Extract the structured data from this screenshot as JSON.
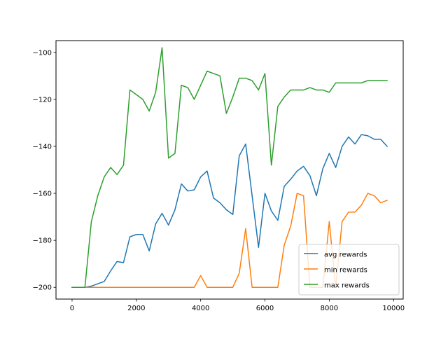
{
  "chart_data": {
    "type": "line",
    "title": "",
    "xlabel": "",
    "ylabel": "",
    "xlim": [
      -500,
      10300
    ],
    "ylim": [
      -205,
      -95
    ],
    "x_ticks": [
      0,
      2000,
      4000,
      6000,
      8000,
      10000
    ],
    "x_tick_labels": [
      "0",
      "2000",
      "4000",
      "6000",
      "8000",
      "10000"
    ],
    "y_ticks": [
      -200,
      -180,
      -160,
      -140,
      -120,
      -100
    ],
    "y_tick_labels": [
      "−200",
      "−180",
      "−160",
      "−140",
      "−120",
      "−100"
    ],
    "grid": false,
    "legend_position": "lower right",
    "x": [
      0,
      200,
      400,
      600,
      800,
      1000,
      1200,
      1400,
      1600,
      1800,
      2000,
      2200,
      2400,
      2600,
      2800,
      3000,
      3200,
      3400,
      3600,
      3800,
      4000,
      4200,
      4400,
      4600,
      4800,
      5000,
      5200,
      5400,
      5600,
      5800,
      6000,
      6200,
      6400,
      6600,
      6800,
      7000,
      7200,
      7400,
      7600,
      7800,
      8000,
      8200,
      8400,
      8600,
      8800,
      9000,
      9200,
      9400,
      9600,
      9800
    ],
    "series": [
      {
        "name": "avg rewards",
        "color": "#1f77b4",
        "values": [
          -200,
          -200,
          -200,
          -199.5,
          -198.5,
          -197.5,
          -193,
          -189,
          -189.5,
          -178.5,
          -177.5,
          -177.5,
          -184.5,
          -173,
          -168.5,
          -173.5,
          -167,
          -156,
          -159,
          -158.5,
          -153,
          -150.5,
          -162,
          -164,
          -167,
          -169,
          -144,
          -139,
          -161,
          -183,
          -160,
          -167.5,
          -171.5,
          -157,
          -154,
          -150.5,
          -148.5,
          -152.5,
          -161,
          -149.5,
          -143,
          -149,
          -140,
          -136,
          -139,
          -135,
          -135.5,
          -137,
          -137,
          -140
        ]
      },
      {
        "name": "min rewards",
        "color": "#ff7f0e",
        "values": [
          -200,
          -200,
          -200,
          -200,
          -200,
          -200,
          -200,
          -200,
          -200,
          -200,
          -200,
          -200,
          -200,
          -200,
          -200,
          -200,
          -200,
          -200,
          -200,
          -200,
          -195,
          -200,
          -200,
          -200,
          -200,
          -200,
          -194,
          -175,
          -200,
          -200,
          -200,
          -200,
          -200,
          -182,
          -174,
          -160,
          -161,
          -200,
          -200,
          -200,
          -172,
          -200,
          -172,
          -168,
          -168,
          -165,
          -160,
          -161,
          -164,
          -163
        ]
      },
      {
        "name": "max rewards",
        "color": "#2ca02c",
        "values": [
          -200,
          -200,
          -200,
          -172,
          -161,
          -153,
          -149,
          -152,
          -148,
          -116,
          -118,
          -120,
          -125,
          -117,
          -98,
          -145,
          -143,
          -114,
          -115,
          -120,
          -114,
          -108,
          -109,
          -110,
          -126,
          -119,
          -111,
          -111,
          -112,
          -116,
          -109,
          -148,
          -123,
          -119,
          -116,
          -116,
          -116,
          -115,
          -116,
          -116,
          -117,
          -113,
          -113,
          -113,
          -113,
          -113,
          -112,
          -112,
          -112,
          -112
        ]
      }
    ]
  }
}
